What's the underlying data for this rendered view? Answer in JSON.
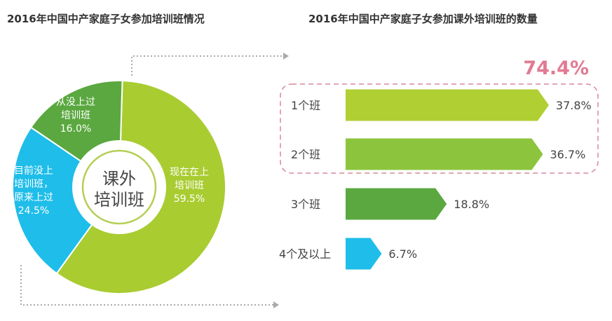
{
  "chart_data": [
    {
      "type": "pie",
      "variant": "donut",
      "title": "2016年中国中产家庭子女参加培训班情况",
      "center_label": [
        "课外",
        "培训班"
      ],
      "slices": [
        {
          "label": [
            "现在在上",
            "培训班"
          ],
          "value": 59.5,
          "value_label": "59.5%",
          "color": "#a9cc31"
        },
        {
          "label": [
            "目前没上",
            "培训班，",
            "原来上过"
          ],
          "value": 24.5,
          "value_label": "24.5%",
          "color": "#1fbde9"
        },
        {
          "label": [
            "从没上过",
            "培训班"
          ],
          "value": 16.0,
          "value_label": "16.0%",
          "color": "#5aa83f"
        }
      ]
    },
    {
      "type": "bar",
      "orientation": "horizontal",
      "title": "2016年中国中产家庭子女参加课外培训班的数量",
      "categories": [
        "1个班",
        "2个班",
        "3个班",
        "4个及以上"
      ],
      "values": [
        37.8,
        36.7,
        18.8,
        6.7
      ],
      "value_labels": [
        "37.8%",
        "36.7%",
        "18.8%",
        "6.7%"
      ],
      "colors": [
        "#b0cf33",
        "#8cc43e",
        "#5aa83f",
        "#1fbde9"
      ],
      "annotation": {
        "text": "74.4%",
        "groups": [
          "1个班",
          "2个班"
        ],
        "color": "#e07b92"
      }
    }
  ]
}
